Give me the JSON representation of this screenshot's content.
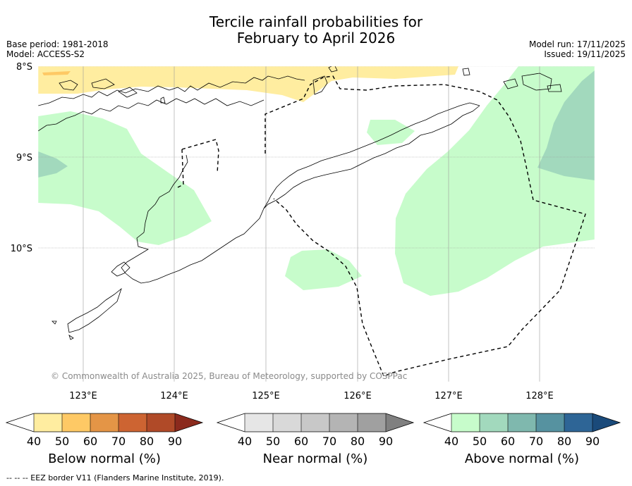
{
  "title_line1": "Tercile rainfall probabilities for",
  "title_line2": "February to April 2026",
  "base_period": "Base period: 1981-2018",
  "model": "Model: ACCESS-S2",
  "model_run": "Model run: 17/11/2025",
  "issued": "Issued: 19/11/2025",
  "lat_labels": [
    "8°S",
    "9°S",
    "10°S"
  ],
  "lon_labels": [
    "123°E",
    "124°E",
    "125°E",
    "126°E",
    "127°E",
    "128°E"
  ],
  "copyright": "© Commonwealth of Australia 2025, Bureau of Meteorology, supported by COSPPac",
  "colorbars": [
    {
      "title": "Below normal (%)",
      "ticks": [
        "40",
        "50",
        "60",
        "70",
        "80",
        "90"
      ],
      "colors": [
        "#ffffff",
        "#ffeda0",
        "#fec965",
        "#e49546",
        "#cd6432",
        "#b04a28",
        "#8b2a1d"
      ]
    },
    {
      "title": "Near normal (%)",
      "ticks": [
        "40",
        "50",
        "60",
        "70",
        "80",
        "90"
      ],
      "colors": [
        "#ffffff",
        "#e6e6e6",
        "#d9d9d9",
        "#c8c8c8",
        "#b4b4b4",
        "#a0a0a0",
        "#808080"
      ]
    },
    {
      "title": "Above normal (%)",
      "ticks": [
        "40",
        "50",
        "60",
        "70",
        "80",
        "90"
      ],
      "colors": [
        "#ffffff",
        "#c7fccb",
        "#a2d9bd",
        "#7fb8ae",
        "#5692a0",
        "#2e6596",
        "#1a4a7a"
      ]
    }
  ],
  "footnote": "--  --  -- EEZ border V11 (Flanders Marine Institute, 2019).",
  "fill_colors": {
    "below_50": "#ffeda0",
    "above_50": "#c7fccb",
    "above_60": "#a2d9bd"
  }
}
